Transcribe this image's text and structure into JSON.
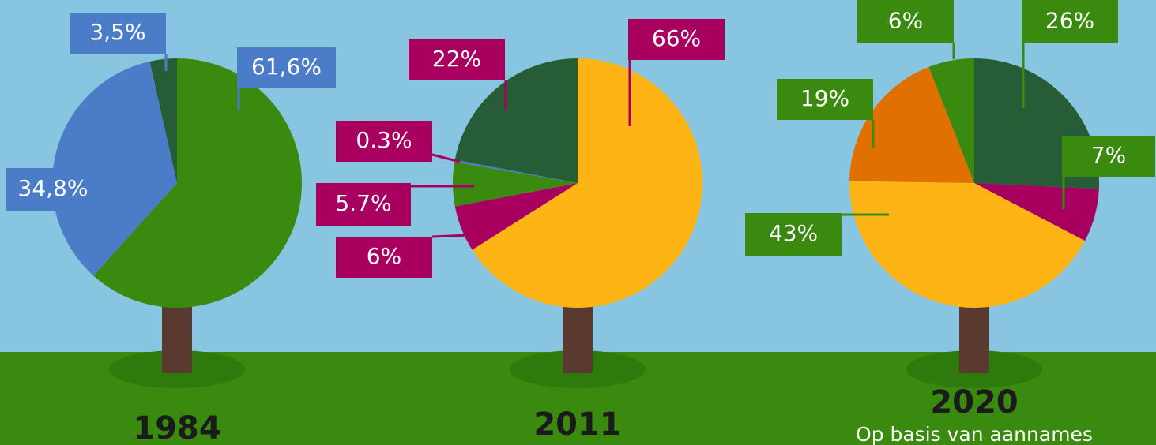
{
  "chart_data": [
    {
      "type": "pie",
      "title": "1984",
      "label_color": "#4a7cc8",
      "categories": [
        null,
        null,
        null
      ],
      "values": [
        61.6,
        34.8,
        3.5
      ],
      "value_labels": [
        "61,6%",
        "34,8%",
        "3,5%"
      ],
      "colors": [
        "#3a8a0f",
        "#4a7cc8",
        "#265c36"
      ]
    },
    {
      "type": "pie",
      "title": "2011",
      "label_color": "#a8005f",
      "categories": [
        null,
        null,
        null,
        null,
        null
      ],
      "values": [
        66,
        6,
        5.7,
        0.3,
        22
      ],
      "value_labels": [
        "66%",
        "6%",
        "5.7%",
        "0.3%",
        "22%"
      ],
      "colors": [
        "#fdb515",
        "#a8005f",
        "#3a8a0f",
        "#4a7cc8",
        "#265c36"
      ]
    },
    {
      "type": "pie",
      "title": "2020",
      "subtitle": "Op basis van aannames",
      "label_color": "#3a8a0f",
      "categories": [
        null,
        null,
        null,
        null,
        null
      ],
      "values": [
        26,
        7,
        43,
        19,
        6
      ],
      "value_labels": [
        "26%",
        "7%",
        "43%",
        "19%",
        "6%"
      ],
      "colors": [
        "#265c36",
        "#a8005f",
        "#fdb515",
        "#e07000",
        "#3a8a0f"
      ]
    }
  ]
}
